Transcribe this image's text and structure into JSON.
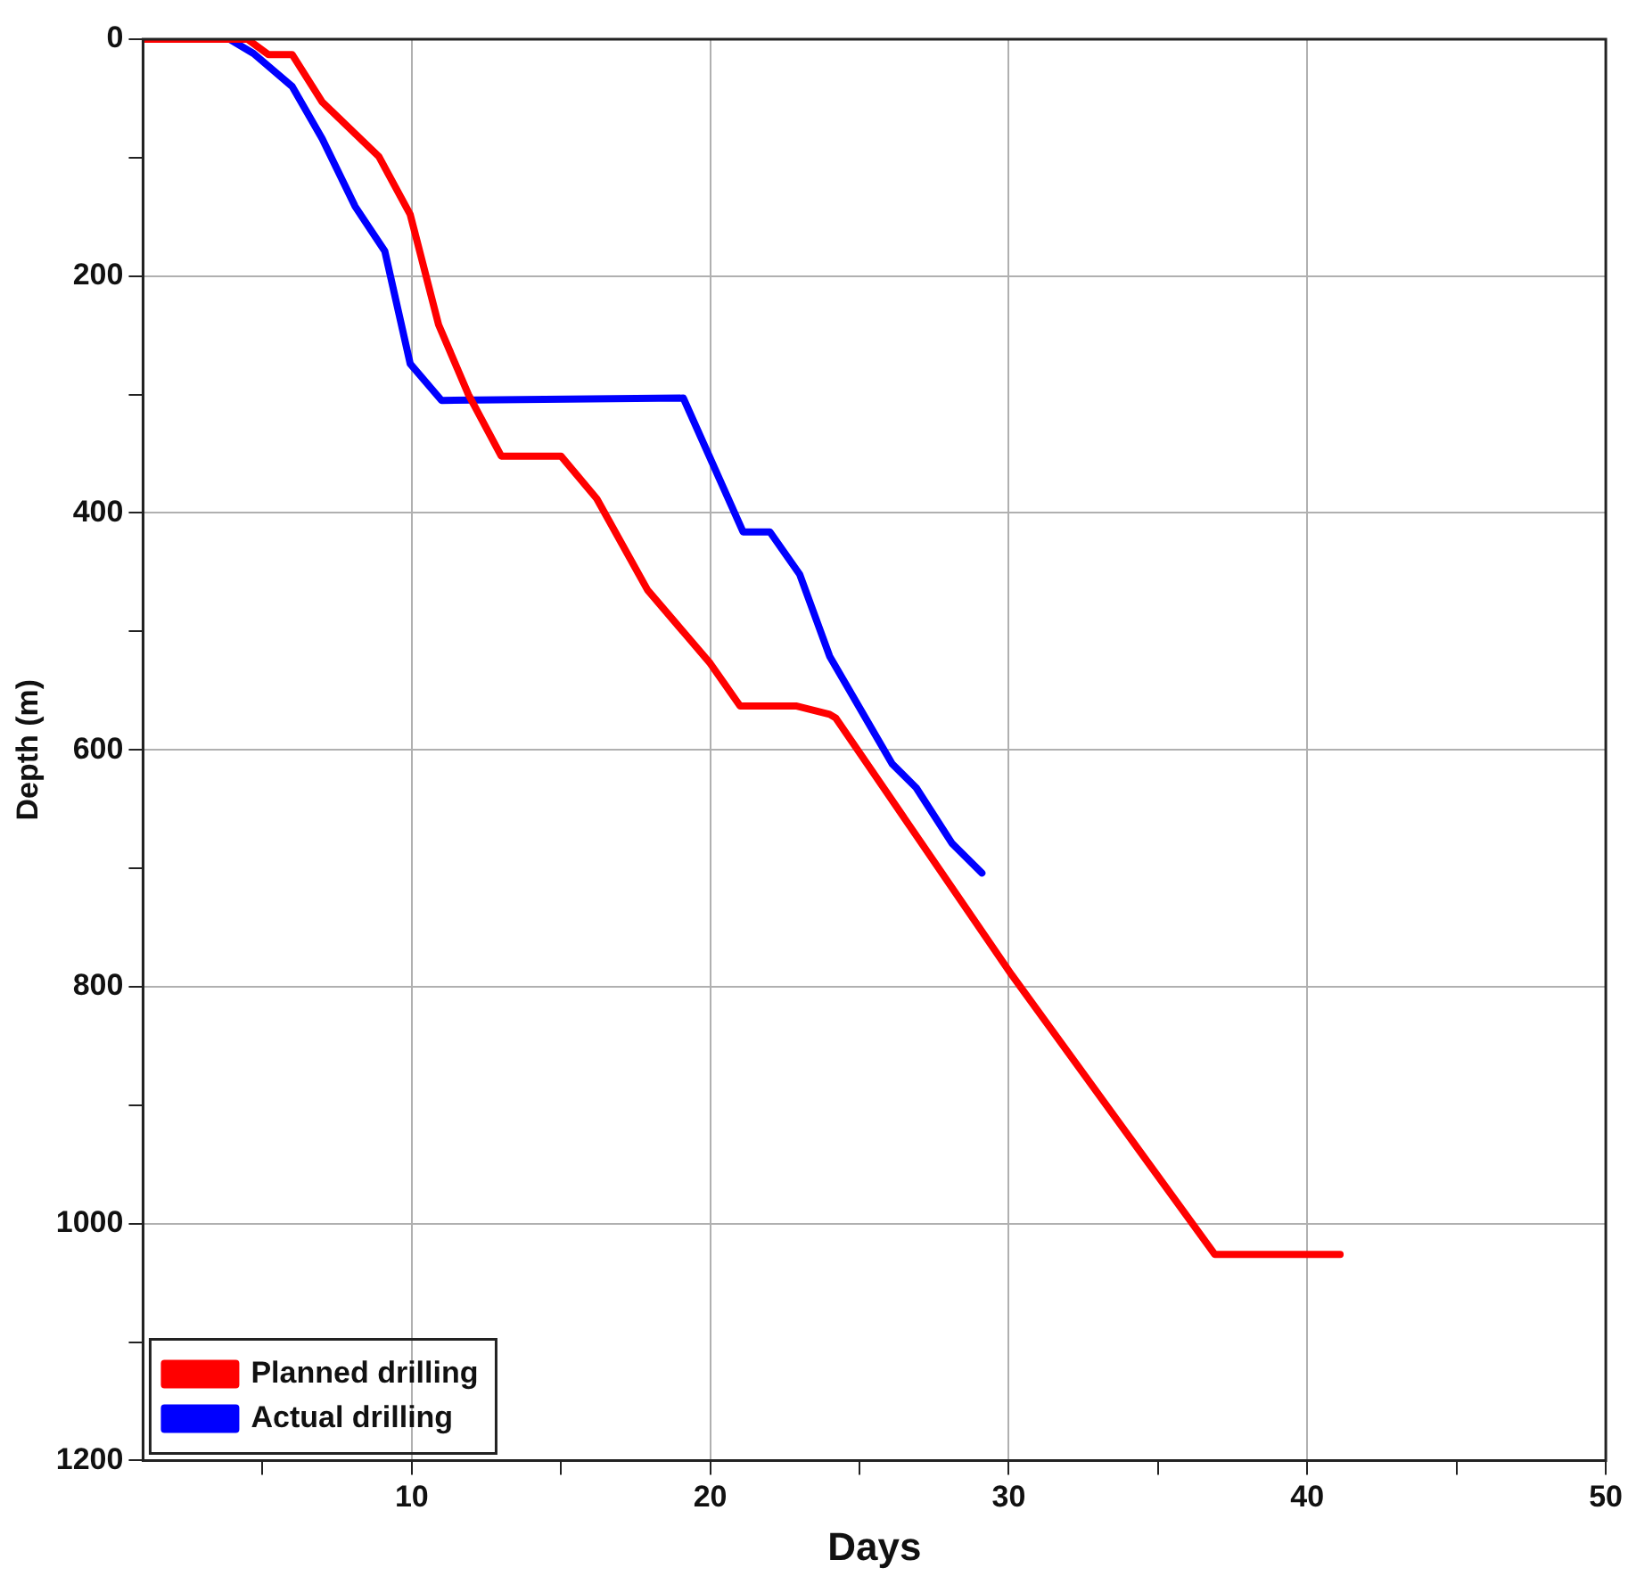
{
  "chart_data": {
    "type": "line",
    "xlabel": "Days",
    "ylabel": "Depth (m)",
    "xlim": [
      1,
      50
    ],
    "xticks": [
      {
        "value": 5,
        "label": null
      },
      10,
      {
        "value": 15,
        "label": null
      },
      20,
      {
        "value": 25,
        "label": null
      },
      30,
      {
        "value": 35,
        "label": null
      },
      40,
      {
        "value": 45,
        "label": null
      },
      50
    ],
    "ylim": [
      1200,
      0
    ],
    "yticks": [
      0,
      {
        "value": 100,
        "label": null
      },
      200,
      {
        "value": 300,
        "label": null
      },
      400,
      {
        "value": 500,
        "label": null
      },
      600,
      {
        "value": 700,
        "label": null
      },
      800,
      {
        "value": 900,
        "label": null
      },
      1000,
      {
        "value": 1100,
        "label": null
      },
      1200
    ],
    "grid": true,
    "legend": "bottom left",
    "line_style": "solid",
    "marker": "none",
    "series": [
      {
        "name": "Planned drilling",
        "color": "#ff0000",
        "x": [
          1,
          4.5,
          5.2,
          6,
          7,
          8.9,
          9.95,
          10.9,
          11.9,
          13,
          15,
          16.2,
          17.9,
          20,
          21,
          22.9,
          24,
          24.2,
          30.1,
          36.9,
          41.1
        ],
        "values": [
          0,
          0,
          13,
          13,
          53,
          99,
          148,
          241,
          300,
          352,
          352,
          388,
          465,
          527,
          563,
          563,
          570,
          573,
          790,
          1026,
          1026
        ]
      },
      {
        "name": "Actual drilling",
        "color": "#0000ff",
        "x": [
          1,
          3.9,
          4.7,
          6,
          7,
          8.1,
          9.1,
          9.95,
          11,
          19.1,
          21.1,
          22,
          23,
          24,
          26.1,
          26.9,
          28.1,
          29.1
        ],
        "values": [
          0,
          0,
          12,
          40,
          84,
          141,
          179,
          274,
          305,
          303,
          416,
          416,
          452,
          521,
          612,
          632,
          679,
          704
        ]
      }
    ]
  }
}
